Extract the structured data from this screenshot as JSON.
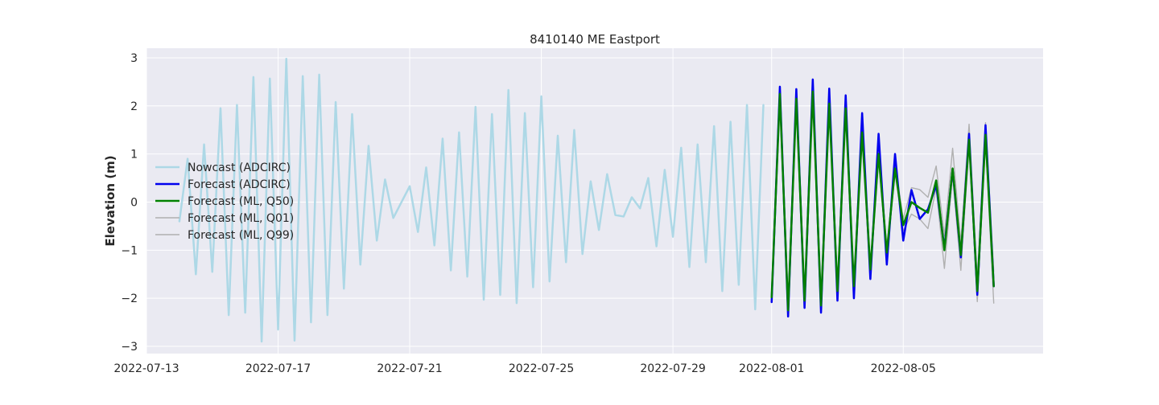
{
  "chart_data": {
    "type": "line",
    "title": "8410140 ME Eastport",
    "xlabel": "",
    "ylabel": "Elevation (m)",
    "x_type": "date",
    "xlim": [
      "2022-07-13T00:00",
      "2022-08-09T06:00"
    ],
    "ylim": [
      -3.15,
      3.2
    ],
    "x_ticks": [
      "2022-07-13",
      "2022-07-17",
      "2022-07-21",
      "2022-07-25",
      "2022-07-29",
      "2022-08-01",
      "2022-08-05"
    ],
    "y_ticks": [
      -3,
      -2,
      -1,
      0,
      1,
      2,
      3
    ],
    "grid": true,
    "legend_position": "center-left",
    "series": [
      {
        "name": "Nowcast (ADCIRC)",
        "color": "#add8e6",
        "linewidth": 2.5,
        "points": [
          [
            "2022-07-14T00:00",
            -0.4
          ],
          [
            "2022-07-14T06:00",
            0.9
          ],
          [
            "2022-07-14T12:00",
            -1.5
          ],
          [
            "2022-07-14T18:00",
            1.2
          ],
          [
            "2022-07-15T00:00",
            -1.45
          ],
          [
            "2022-07-15T06:00",
            1.95
          ],
          [
            "2022-07-15T12:00",
            -2.35
          ],
          [
            "2022-07-15T18:00",
            2.02
          ],
          [
            "2022-07-16T00:00",
            -2.3
          ],
          [
            "2022-07-16T06:00",
            2.6
          ],
          [
            "2022-07-16T12:00",
            -2.9
          ],
          [
            "2022-07-16T18:00",
            2.57
          ],
          [
            "2022-07-17T00:00",
            -2.65
          ],
          [
            "2022-07-17T06:00",
            2.98
          ],
          [
            "2022-07-17T12:00",
            -2.88
          ],
          [
            "2022-07-17T18:00",
            2.62
          ],
          [
            "2022-07-18T00:00",
            -2.5
          ],
          [
            "2022-07-18T06:00",
            2.65
          ],
          [
            "2022-07-18T12:00",
            -2.35
          ],
          [
            "2022-07-18T18:00",
            2.08
          ],
          [
            "2022-07-19T00:00",
            -1.8
          ],
          [
            "2022-07-19T06:00",
            1.83
          ],
          [
            "2022-07-19T12:00",
            -1.3
          ],
          [
            "2022-07-19T18:00",
            1.17
          ],
          [
            "2022-07-20T00:00",
            -0.8
          ],
          [
            "2022-07-20T06:00",
            0.47
          ],
          [
            "2022-07-20T12:00",
            -0.33
          ],
          [
            "2022-07-21T00:00",
            0.33
          ],
          [
            "2022-07-21T06:00",
            -0.62
          ],
          [
            "2022-07-21T12:00",
            0.72
          ],
          [
            "2022-07-21T18:00",
            -0.9
          ],
          [
            "2022-07-22T00:00",
            1.32
          ],
          [
            "2022-07-22T06:00",
            -1.42
          ],
          [
            "2022-07-22T12:00",
            1.45
          ],
          [
            "2022-07-22T18:00",
            -1.55
          ],
          [
            "2022-07-23T00:00",
            1.98
          ],
          [
            "2022-07-23T06:00",
            -2.03
          ],
          [
            "2022-07-23T12:00",
            1.83
          ],
          [
            "2022-07-23T18:00",
            -1.93
          ],
          [
            "2022-07-24T00:00",
            2.33
          ],
          [
            "2022-07-24T06:00",
            -2.1
          ],
          [
            "2022-07-24T12:00",
            1.85
          ],
          [
            "2022-07-24T18:00",
            -1.77
          ],
          [
            "2022-07-25T00:00",
            2.2
          ],
          [
            "2022-07-25T06:00",
            -1.65
          ],
          [
            "2022-07-25T12:00",
            1.38
          ],
          [
            "2022-07-25T18:00",
            -1.25
          ],
          [
            "2022-07-26T00:00",
            1.5
          ],
          [
            "2022-07-26T06:00",
            -1.08
          ],
          [
            "2022-07-26T12:00",
            0.43
          ],
          [
            "2022-07-26T18:00",
            -0.58
          ],
          [
            "2022-07-27T00:00",
            0.58
          ],
          [
            "2022-07-27T06:00",
            -0.27
          ],
          [
            "2022-07-27T12:00",
            -0.3
          ],
          [
            "2022-07-27T18:00",
            0.1
          ],
          [
            "2022-07-28T00:00",
            -0.13
          ],
          [
            "2022-07-28T06:00",
            0.5
          ],
          [
            "2022-07-28T12:00",
            -0.92
          ],
          [
            "2022-07-28T18:00",
            0.67
          ],
          [
            "2022-07-29T00:00",
            -0.72
          ],
          [
            "2022-07-29T06:00",
            1.13
          ],
          [
            "2022-07-29T12:00",
            -1.35
          ],
          [
            "2022-07-29T18:00",
            1.2
          ],
          [
            "2022-07-30T00:00",
            -1.25
          ],
          [
            "2022-07-30T06:00",
            1.58
          ],
          [
            "2022-07-30T12:00",
            -1.85
          ],
          [
            "2022-07-30T18:00",
            1.67
          ],
          [
            "2022-07-31T00:00",
            -1.72
          ],
          [
            "2022-07-31T06:00",
            2.02
          ],
          [
            "2022-07-31T12:00",
            -2.23
          ],
          [
            "2022-07-31T18:00",
            2.02
          ]
        ]
      },
      {
        "name": "Forecast (ADCIRC)",
        "color": "#0000ee",
        "linewidth": 2.5,
        "points": [
          [
            "2022-08-01T00:00",
            -2.08
          ],
          [
            "2022-08-01T06:00",
            2.4
          ],
          [
            "2022-08-01T12:00",
            -2.38
          ],
          [
            "2022-08-01T18:00",
            2.35
          ],
          [
            "2022-08-02T00:00",
            -2.2
          ],
          [
            "2022-08-02T06:00",
            2.55
          ],
          [
            "2022-08-02T12:00",
            -2.3
          ],
          [
            "2022-08-02T18:00",
            2.36
          ],
          [
            "2022-08-03T00:00",
            -2.05
          ],
          [
            "2022-08-03T06:00",
            2.22
          ],
          [
            "2022-08-03T12:00",
            -2.0
          ],
          [
            "2022-08-03T18:00",
            1.85
          ],
          [
            "2022-08-04T00:00",
            -1.6
          ],
          [
            "2022-08-04T06:00",
            1.42
          ],
          [
            "2022-08-04T12:00",
            -1.3
          ],
          [
            "2022-08-04T18:00",
            1.0
          ],
          [
            "2022-08-05T00:00",
            -0.8
          ],
          [
            "2022-08-05T06:00",
            0.25
          ],
          [
            "2022-08-05T12:00",
            -0.35
          ],
          [
            "2022-08-05T18:00",
            -0.15
          ],
          [
            "2022-08-06T00:00",
            0.35
          ],
          [
            "2022-08-06T06:00",
            -0.95
          ],
          [
            "2022-08-06T12:00",
            0.68
          ],
          [
            "2022-08-06T18:00",
            -1.15
          ],
          [
            "2022-08-07T00:00",
            1.42
          ],
          [
            "2022-08-07T06:00",
            -1.93
          ],
          [
            "2022-08-07T12:00",
            1.6
          ],
          [
            "2022-08-07T18:00",
            -1.75
          ]
        ]
      },
      {
        "name": "Forecast (ML, Q50)",
        "color": "#008000",
        "linewidth": 2.5,
        "points": [
          [
            "2022-08-01T00:00",
            -1.98
          ],
          [
            "2022-08-01T06:00",
            2.25
          ],
          [
            "2022-08-01T12:00",
            -2.25
          ],
          [
            "2022-08-01T18:00",
            2.15
          ],
          [
            "2022-08-02T00:00",
            -2.05
          ],
          [
            "2022-08-02T06:00",
            2.3
          ],
          [
            "2022-08-02T12:00",
            -2.15
          ],
          [
            "2022-08-02T18:00",
            2.05
          ],
          [
            "2022-08-03T00:00",
            -1.85
          ],
          [
            "2022-08-03T06:00",
            1.95
          ],
          [
            "2022-08-03T12:00",
            -1.75
          ],
          [
            "2022-08-03T18:00",
            1.45
          ],
          [
            "2022-08-04T00:00",
            -1.4
          ],
          [
            "2022-08-04T06:00",
            1.0
          ],
          [
            "2022-08-04T12:00",
            -1.05
          ],
          [
            "2022-08-04T18:00",
            0.7
          ],
          [
            "2022-08-05T00:00",
            -0.48
          ],
          [
            "2022-08-05T06:00",
            0.0
          ],
          [
            "2022-08-05T12:00",
            -0.12
          ],
          [
            "2022-08-05T18:00",
            -0.22
          ],
          [
            "2022-08-06T00:00",
            0.45
          ],
          [
            "2022-08-06T06:00",
            -1.0
          ],
          [
            "2022-08-06T12:00",
            0.7
          ],
          [
            "2022-08-06T18:00",
            -1.1
          ],
          [
            "2022-08-07T00:00",
            1.3
          ],
          [
            "2022-08-07T06:00",
            -1.85
          ],
          [
            "2022-08-07T12:00",
            1.4
          ],
          [
            "2022-08-07T18:00",
            -1.75
          ]
        ]
      },
      {
        "name": "Forecast (ML, Q01)",
        "color": "#b0b0b0",
        "linewidth": 1.4,
        "points": [
          [
            "2022-08-01T00:00",
            -2.05
          ],
          [
            "2022-08-01T06:00",
            2.2
          ],
          [
            "2022-08-01T12:00",
            -2.32
          ],
          [
            "2022-08-01T18:00",
            2.1
          ],
          [
            "2022-08-02T00:00",
            -2.12
          ],
          [
            "2022-08-02T06:00",
            2.22
          ],
          [
            "2022-08-02T12:00",
            -2.22
          ],
          [
            "2022-08-02T18:00",
            1.98
          ],
          [
            "2022-08-03T00:00",
            -1.92
          ],
          [
            "2022-08-03T06:00",
            1.88
          ],
          [
            "2022-08-03T12:00",
            -1.82
          ],
          [
            "2022-08-03T18:00",
            1.38
          ],
          [
            "2022-08-04T00:00",
            -1.5
          ],
          [
            "2022-08-04T06:00",
            0.9
          ],
          [
            "2022-08-04T12:00",
            -1.15
          ],
          [
            "2022-08-04T18:00",
            0.6
          ],
          [
            "2022-08-05T00:00",
            -0.6
          ],
          [
            "2022-08-05T06:00",
            -0.25
          ],
          [
            "2022-08-05T12:00",
            -0.35
          ],
          [
            "2022-08-05T18:00",
            -0.55
          ],
          [
            "2022-08-06T00:00",
            0.3
          ],
          [
            "2022-08-06T06:00",
            -1.38
          ],
          [
            "2022-08-06T12:00",
            0.55
          ],
          [
            "2022-08-06T18:00",
            -1.42
          ],
          [
            "2022-08-07T00:00",
            1.2
          ],
          [
            "2022-08-07T06:00",
            -2.07
          ],
          [
            "2022-08-07T12:00",
            1.25
          ],
          [
            "2022-08-07T18:00",
            -2.1
          ]
        ]
      },
      {
        "name": "Forecast (ML, Q99)",
        "color": "#b0b0b0",
        "linewidth": 1.4,
        "points": [
          [
            "2022-08-01T00:00",
            -1.9
          ],
          [
            "2022-08-01T06:00",
            2.3
          ],
          [
            "2022-08-01T12:00",
            -2.18
          ],
          [
            "2022-08-01T18:00",
            2.2
          ],
          [
            "2022-08-02T00:00",
            -1.98
          ],
          [
            "2022-08-02T06:00",
            2.38
          ],
          [
            "2022-08-02T12:00",
            -2.08
          ],
          [
            "2022-08-02T18:00",
            2.12
          ],
          [
            "2022-08-03T00:00",
            -1.78
          ],
          [
            "2022-08-03T06:00",
            2.05
          ],
          [
            "2022-08-03T12:00",
            -1.68
          ],
          [
            "2022-08-03T18:00",
            1.55
          ],
          [
            "2022-08-04T00:00",
            -1.32
          ],
          [
            "2022-08-04T06:00",
            1.1
          ],
          [
            "2022-08-04T12:00",
            -0.95
          ],
          [
            "2022-08-04T18:00",
            0.8
          ],
          [
            "2022-08-05T00:00",
            -0.35
          ],
          [
            "2022-08-05T06:00",
            0.3
          ],
          [
            "2022-08-05T12:00",
            0.26
          ],
          [
            "2022-08-05T18:00",
            0.1
          ],
          [
            "2022-08-06T00:00",
            0.75
          ],
          [
            "2022-08-06T06:00",
            -0.7
          ],
          [
            "2022-08-06T12:00",
            1.12
          ],
          [
            "2022-08-06T18:00",
            -0.85
          ],
          [
            "2022-08-07T00:00",
            1.62
          ],
          [
            "2022-08-07T06:00",
            -1.6
          ],
          [
            "2022-08-07T12:00",
            1.65
          ],
          [
            "2022-08-07T18:00",
            -1.45
          ]
        ]
      }
    ]
  }
}
